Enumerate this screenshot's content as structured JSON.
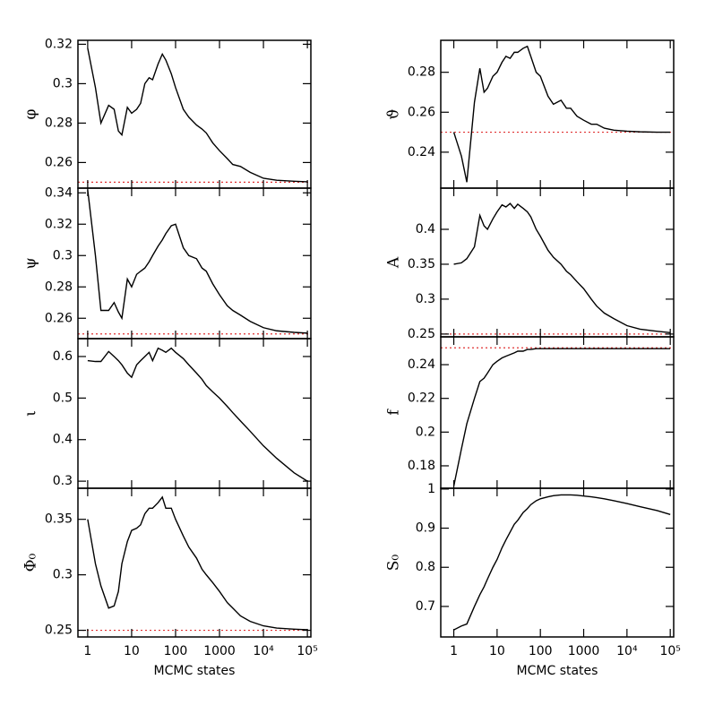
{
  "chart_data": [
    {
      "type": "line",
      "ylabel": "φ",
      "xscale": "log",
      "xlim": [
        0.6,
        120000
      ],
      "xticks": [
        1,
        10,
        100,
        1000,
        10000,
        100000
      ],
      "ylim": [
        0.247,
        0.322
      ],
      "yticks": [
        0.26,
        0.28,
        0.3,
        0.32
      ],
      "color": "#000000",
      "reference": {
        "value": 0.25,
        "color": "#e03030"
      },
      "x": [
        1,
        1.5,
        2,
        3,
        4,
        5,
        6,
        8,
        10,
        13,
        16,
        20,
        25,
        30,
        40,
        50,
        60,
        80,
        100,
        150,
        200,
        300,
        400,
        500,
        700,
        1000,
        1500,
        2000,
        3000,
        5000,
        10000,
        20000,
        50000,
        100000
      ],
      "values": [
        0.318,
        0.298,
        0.28,
        0.289,
        0.287,
        0.276,
        0.274,
        0.288,
        0.285,
        0.287,
        0.29,
        0.3,
        0.303,
        0.302,
        0.31,
        0.315,
        0.312,
        0.305,
        0.298,
        0.287,
        0.283,
        0.279,
        0.277,
        0.275,
        0.27,
        0.266,
        0.262,
        0.259,
        0.258,
        0.255,
        0.252,
        0.251,
        0.2505,
        0.2502
      ]
    },
    {
      "type": "line",
      "ylabel": "ψ",
      "xscale": "log",
      "xlim": [
        0.6,
        120000
      ],
      "xticks": [
        1,
        10,
        100,
        1000,
        10000,
        100000
      ],
      "ylim": [
        0.247,
        0.343
      ],
      "yticks": [
        0.26,
        0.28,
        0.3,
        0.32,
        0.34
      ],
      "color": "#000000",
      "reference": {
        "value": 0.25,
        "color": "#e03030"
      },
      "x": [
        1,
        1.5,
        2,
        3,
        4,
        5,
        6,
        8,
        10,
        13,
        16,
        20,
        25,
        30,
        40,
        50,
        60,
        80,
        100,
        150,
        200,
        300,
        400,
        500,
        700,
        1000,
        1500,
        2000,
        3000,
        5000,
        10000,
        20000,
        50000,
        100000
      ],
      "values": [
        0.342,
        0.3,
        0.265,
        0.265,
        0.27,
        0.264,
        0.26,
        0.285,
        0.28,
        0.288,
        0.29,
        0.292,
        0.296,
        0.3,
        0.306,
        0.31,
        0.314,
        0.319,
        0.32,
        0.305,
        0.3,
        0.298,
        0.292,
        0.29,
        0.282,
        0.275,
        0.268,
        0.265,
        0.262,
        0.258,
        0.254,
        0.252,
        0.251,
        0.2505
      ]
    },
    {
      "type": "line",
      "ylabel": "ι",
      "xscale": "log",
      "xlim": [
        0.6,
        120000
      ],
      "xticks": [
        1,
        10,
        100,
        1000,
        10000,
        100000
      ],
      "ylim": [
        0.283,
        0.643
      ],
      "yticks": [
        0.3,
        0.4,
        0.5,
        0.6
      ],
      "color": "#000000",
      "x": [
        1,
        1.5,
        2,
        3,
        4,
        5,
        6,
        8,
        10,
        13,
        16,
        20,
        25,
        30,
        40,
        50,
        60,
        80,
        100,
        150,
        200,
        300,
        400,
        500,
        700,
        1000,
        1500,
        2000,
        3000,
        5000,
        10000,
        20000,
        50000,
        100000
      ],
      "values": [
        0.59,
        0.588,
        0.588,
        0.612,
        0.6,
        0.59,
        0.58,
        0.56,
        0.55,
        0.58,
        0.59,
        0.6,
        0.61,
        0.59,
        0.62,
        0.615,
        0.61,
        0.62,
        0.61,
        0.595,
        0.58,
        0.56,
        0.545,
        0.53,
        0.515,
        0.5,
        0.48,
        0.465,
        0.445,
        0.42,
        0.385,
        0.355,
        0.32,
        0.3
      ]
    },
    {
      "type": "line",
      "ylabel": "Φ₀",
      "xlabel": "MCMC states",
      "x_tick_labels": true,
      "xscale": "log",
      "xlim": [
        0.6,
        120000
      ],
      "xticks": [
        1,
        10,
        100,
        1000,
        {
          "value": 10000,
          "label": "10⁴"
        },
        {
          "value": 100000,
          "label": "10⁵"
        }
      ],
      "ylim": [
        0.244,
        0.378
      ],
      "yticks": [
        0.25,
        0.3,
        0.35
      ],
      "color": "#000000",
      "reference": {
        "value": 0.25,
        "color": "#e03030"
      },
      "x": [
        1,
        1.5,
        2,
        3,
        4,
        5,
        6,
        8,
        10,
        13,
        16,
        20,
        25,
        30,
        40,
        50,
        60,
        80,
        100,
        150,
        200,
        300,
        400,
        500,
        700,
        1000,
        1500,
        2000,
        3000,
        5000,
        10000,
        20000,
        50000,
        100000
      ],
      "values": [
        0.35,
        0.31,
        0.29,
        0.27,
        0.272,
        0.285,
        0.31,
        0.33,
        0.34,
        0.342,
        0.345,
        0.355,
        0.36,
        0.36,
        0.365,
        0.37,
        0.36,
        0.36,
        0.35,
        0.335,
        0.325,
        0.315,
        0.305,
        0.3,
        0.293,
        0.285,
        0.275,
        0.27,
        0.263,
        0.258,
        0.254,
        0.252,
        0.251,
        0.2505
      ]
    },
    {
      "type": "line",
      "ylabel": "ϑ",
      "xscale": "log",
      "xlim": [
        0.5,
        120000
      ],
      "xticks": [
        1,
        10,
        100,
        1000,
        10000,
        100000
      ],
      "ylim": [
        0.222,
        0.296
      ],
      "yticks": [
        0.24,
        0.26,
        0.28
      ],
      "color": "#000000",
      "reference": {
        "value": 0.25,
        "color": "#e03030"
      },
      "x": [
        1,
        1.5,
        2,
        3,
        4,
        5,
        6,
        8,
        10,
        13,
        16,
        20,
        25,
        30,
        40,
        50,
        60,
        80,
        100,
        150,
        200,
        300,
        400,
        500,
        700,
        1000,
        1500,
        2000,
        3000,
        5000,
        10000,
        20000,
        50000,
        100000
      ],
      "values": [
        0.25,
        0.238,
        0.225,
        0.265,
        0.282,
        0.27,
        0.272,
        0.278,
        0.28,
        0.285,
        0.288,
        0.287,
        0.29,
        0.29,
        0.292,
        0.293,
        0.288,
        0.28,
        0.278,
        0.268,
        0.264,
        0.266,
        0.262,
        0.262,
        0.258,
        0.256,
        0.254,
        0.254,
        0.252,
        0.251,
        0.2505,
        0.2502,
        0.25,
        0.25
      ]
    },
    {
      "type": "line",
      "ylabel": "A",
      "xscale": "log",
      "xlim": [
        0.5,
        120000
      ],
      "xticks": [
        1,
        10,
        100,
        1000,
        10000,
        100000
      ],
      "ylim": [
        0.246,
        0.459
      ],
      "yticks": [
        0.25,
        0.3,
        0.35,
        0.4
      ],
      "color": "#000000",
      "reference": {
        "value": 0.25,
        "color": "#e03030"
      },
      "x": [
        1,
        1.5,
        2,
        3,
        4,
        5,
        6,
        8,
        10,
        13,
        16,
        20,
        25,
        30,
        40,
        50,
        60,
        80,
        100,
        150,
        200,
        300,
        400,
        500,
        700,
        1000,
        1500,
        2000,
        3000,
        5000,
        10000,
        20000,
        50000,
        100000
      ],
      "values": [
        0.35,
        0.352,
        0.358,
        0.375,
        0.42,
        0.405,
        0.4,
        0.415,
        0.425,
        0.435,
        0.432,
        0.437,
        0.43,
        0.436,
        0.43,
        0.425,
        0.418,
        0.4,
        0.39,
        0.37,
        0.36,
        0.35,
        0.34,
        0.335,
        0.325,
        0.315,
        0.3,
        0.29,
        0.28,
        0.272,
        0.262,
        0.257,
        0.254,
        0.252
      ]
    },
    {
      "type": "line",
      "ylabel": "f",
      "xscale": "log",
      "xlim": [
        0.5,
        120000
      ],
      "xticks": [
        1,
        10,
        100,
        1000,
        10000,
        100000
      ],
      "ylim": [
        0.1667,
        0.2565
      ],
      "yticks": [
        0.18,
        0.2,
        0.22,
        0.24
      ],
      "color": "#000000",
      "reference": {
        "value": 0.25,
        "color": "#e03030"
      },
      "x": [
        1,
        1.5,
        2,
        3,
        4,
        5,
        6,
        8,
        10,
        13,
        16,
        20,
        25,
        30,
        40,
        50,
        60,
        80,
        100,
        150,
        200,
        300,
        400,
        500,
        700,
        1000,
        1500,
        2000,
        3000,
        5000,
        10000,
        20000,
        50000,
        100000
      ],
      "values": [
        0.168,
        0.19,
        0.205,
        0.22,
        0.23,
        0.232,
        0.235,
        0.24,
        0.242,
        0.244,
        0.245,
        0.246,
        0.247,
        0.248,
        0.248,
        0.249,
        0.249,
        0.2495,
        0.2495,
        0.2495,
        0.2495,
        0.2495,
        0.2495,
        0.2495,
        0.2495,
        0.2495,
        0.2495,
        0.2495,
        0.2495,
        0.2495,
        0.2495,
        0.2495,
        0.2495,
        0.2495
      ]
    },
    {
      "type": "line",
      "ylabel": "S₀",
      "xlabel": "MCMC states",
      "x_tick_labels": true,
      "xscale": "log",
      "xlim": [
        0.5,
        120000
      ],
      "xticks": [
        1,
        10,
        100,
        1000,
        {
          "value": 10000,
          "label": "10⁴"
        },
        {
          "value": 100000,
          "label": "10⁵"
        }
      ],
      "ylim": [
        0.622,
        1.002
      ],
      "yticks": [
        0.7,
        0.8,
        0.9,
        1
      ],
      "color": "#000000",
      "x": [
        1,
        1.5,
        2,
        3,
        4,
        5,
        6,
        8,
        10,
        13,
        16,
        20,
        25,
        30,
        40,
        50,
        60,
        80,
        100,
        150,
        200,
        300,
        400,
        500,
        700,
        1000,
        1500,
        2000,
        3000,
        5000,
        10000,
        20000,
        50000,
        100000
      ],
      "values": [
        0.64,
        0.65,
        0.655,
        0.7,
        0.73,
        0.75,
        0.77,
        0.8,
        0.82,
        0.85,
        0.87,
        0.89,
        0.91,
        0.92,
        0.94,
        0.95,
        0.96,
        0.97,
        0.975,
        0.98,
        0.983,
        0.985,
        0.985,
        0.985,
        0.984,
        0.982,
        0.98,
        0.978,
        0.975,
        0.97,
        0.963,
        0.955,
        0.945,
        0.935
      ]
    }
  ]
}
